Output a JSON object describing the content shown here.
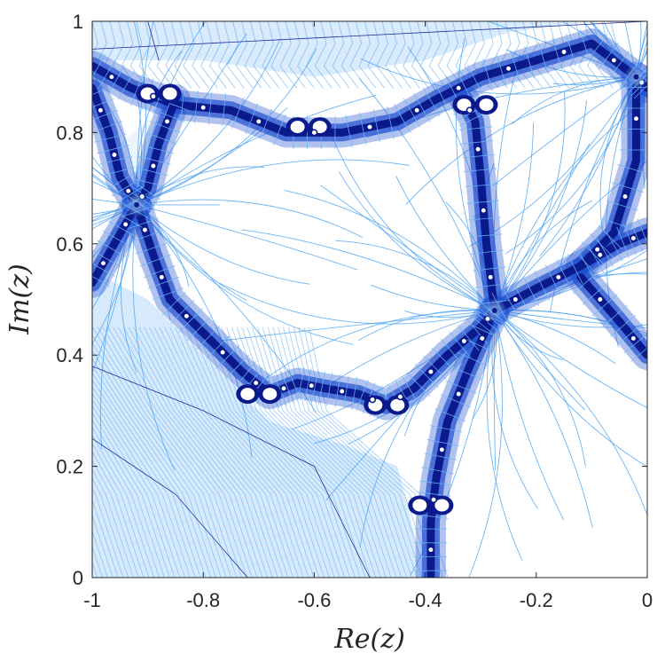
{
  "chart_data": {
    "type": "heatmap",
    "title": "",
    "xlabel": "Re(z)",
    "ylabel": "Im(z)",
    "xlim": [
      -1,
      0
    ],
    "ylim": [
      0,
      1
    ],
    "xticks": [
      -1,
      -0.8,
      -0.6,
      -0.4,
      -0.2,
      0
    ],
    "yticks": [
      0,
      0.2,
      0.4,
      0.6,
      0.8,
      1
    ],
    "xtick_labels": [
      "-1",
      "-0.8",
      "-0.6",
      "-0.4",
      "-0.2",
      "0"
    ],
    "ytick_labels": [
      "0",
      "0.2",
      "0.4",
      "0.6",
      "0.8",
      "1"
    ],
    "grid": false,
    "colors": {
      "dark_band": "#0a1a8c",
      "mid_band": "#1f4fd0",
      "light_line": "#4aa3f0",
      "pale_fill": "#cfe6fb",
      "background": "#ffffff"
    },
    "junction_points": [
      {
        "x": -0.92,
        "y": 0.67
      },
      {
        "x": -0.275,
        "y": 0.48
      },
      {
        "x": -0.02,
        "y": 0.9
      }
    ],
    "bulb_points": [
      {
        "x": -0.88,
        "y": 0.87
      },
      {
        "x": -0.61,
        "y": 0.81
      },
      {
        "x": -0.7,
        "y": 0.33
      },
      {
        "x": -0.47,
        "y": 0.31
      },
      {
        "x": -0.39,
        "y": 0.13
      },
      {
        "x": -0.31,
        "y": 0.85
      }
    ]
  }
}
